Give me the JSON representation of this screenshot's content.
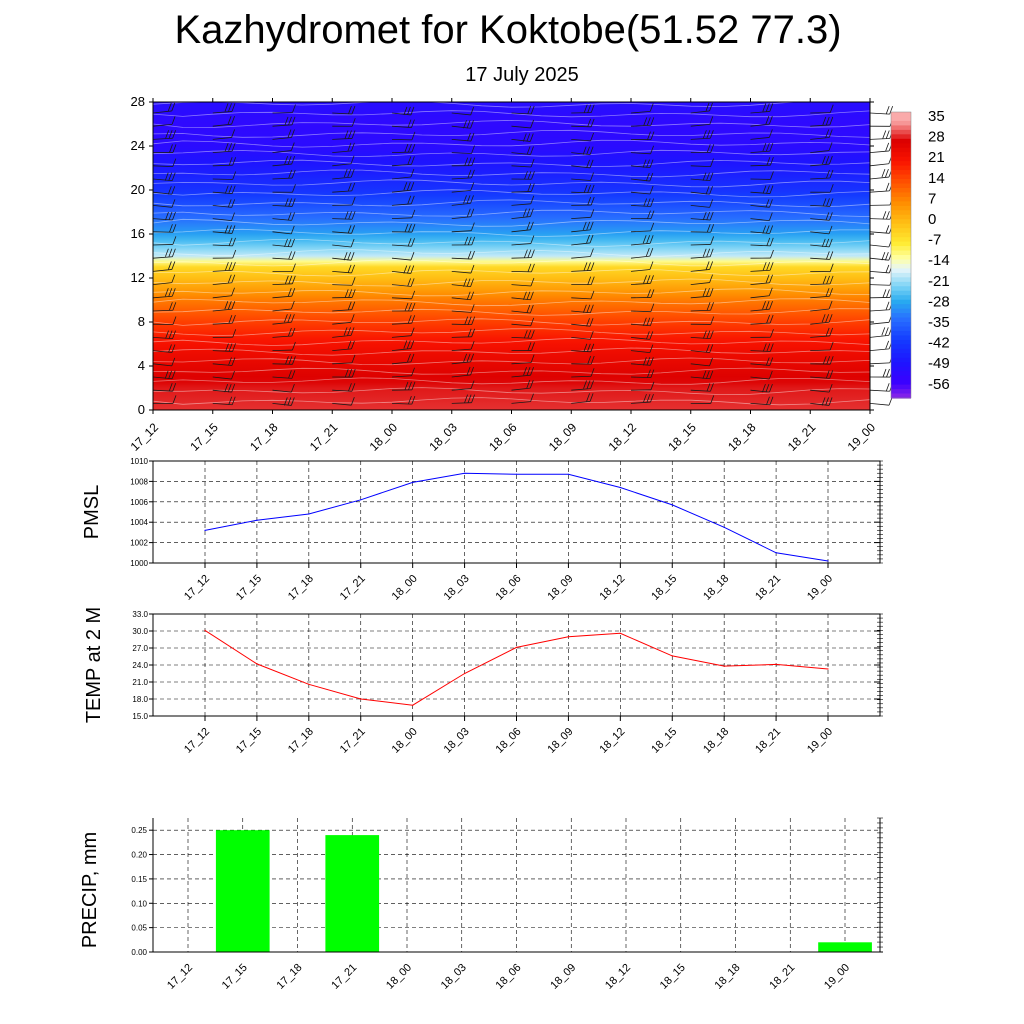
{
  "header": {
    "title": "Kazhydromet for Koktobe(51.52 77.3)",
    "date": "17 July 2025"
  },
  "chart_data": [
    {
      "type": "heatmap",
      "name": "vertical temperature cross-section with wind barbs",
      "x_tick_labels": [
        "17_12",
        "17_15",
        "17_18",
        "17_21",
        "18_00",
        "18_03",
        "18_06",
        "18_09",
        "18_12",
        "18_15",
        "18_18",
        "18_21",
        "19_00"
      ],
      "y_ticks": [
        "0",
        "4",
        "8",
        "12",
        "16",
        "20",
        "24",
        "28"
      ],
      "ylim": [
        0,
        28
      ],
      "colorbar": {
        "labels": [
          "35",
          "28",
          "21",
          "14",
          "7",
          "0",
          "-7",
          "-14",
          "-21",
          "-28",
          "-35",
          "-42",
          "-49",
          "-56"
        ],
        "range": [
          -60,
          38
        ]
      },
      "temperature_profile": {
        "levels": [
          0,
          2,
          4,
          6,
          8,
          10,
          12,
          13,
          14,
          16,
          18,
          20,
          22,
          24,
          26,
          28
        ],
        "values": [
          30,
          29,
          26,
          22,
          16,
          9,
          0,
          -4,
          -18,
          -28,
          -35,
          -42,
          -47,
          -51,
          -52,
          -50
        ]
      },
      "wind_barbs": true,
      "contour_lines": true
    },
    {
      "type": "line",
      "ylabel": "PMSL",
      "categories": [
        "17_12",
        "17_15",
        "17_18",
        "17_21",
        "18_00",
        "18_03",
        "18_06",
        "18_09",
        "18_12",
        "18_15",
        "18_18",
        "18_21",
        "19_00"
      ],
      "values": [
        1003.2,
        1004.2,
        1004.8,
        1006.2,
        1007.9,
        1008.8,
        1008.7,
        1008.7,
        1007.4,
        1005.7,
        1003.5,
        1001.0,
        1000.2
      ],
      "ylim": [
        1000,
        1010
      ],
      "y_ticks": [
        "1000",
        "1002",
        "1004",
        "1006",
        "1008",
        "1010"
      ],
      "color": "#0000ff",
      "grid": true
    },
    {
      "type": "line",
      "ylabel": "TEMP at 2 M",
      "categories": [
        "17_12",
        "17_15",
        "17_18",
        "17_21",
        "18_00",
        "18_03",
        "18_06",
        "18_09",
        "18_12",
        "18_15",
        "18_18",
        "18_21",
        "19_00"
      ],
      "values": [
        30.1,
        24.2,
        20.6,
        18.0,
        16.9,
        22.5,
        27.1,
        29.0,
        29.6,
        25.6,
        23.8,
        24.1,
        23.3
      ],
      "ylim": [
        15.0,
        33.0
      ],
      "y_ticks": [
        "15.0",
        "18.0",
        "21.0",
        "24.0",
        "27.0",
        "30.0",
        "33.0"
      ],
      "color": "#ff0000",
      "grid": true
    },
    {
      "type": "bar",
      "ylabel": "PRECIP, mm",
      "categories": [
        "17_12",
        "17_15",
        "17_18",
        "17_21",
        "18_00",
        "18_03",
        "18_06",
        "18_09",
        "18_12",
        "18_15",
        "18_18",
        "18_21",
        "19_00"
      ],
      "values": [
        0,
        0.25,
        0,
        0.24,
        0,
        0,
        0,
        0,
        0,
        0,
        0,
        0,
        0.02
      ],
      "ylim": [
        0,
        0.275
      ],
      "y_ticks": [
        "0.00",
        "0.05",
        "0.10",
        "0.15",
        "0.20",
        "0.25"
      ],
      "color": "#00ff00",
      "grid": true
    }
  ]
}
